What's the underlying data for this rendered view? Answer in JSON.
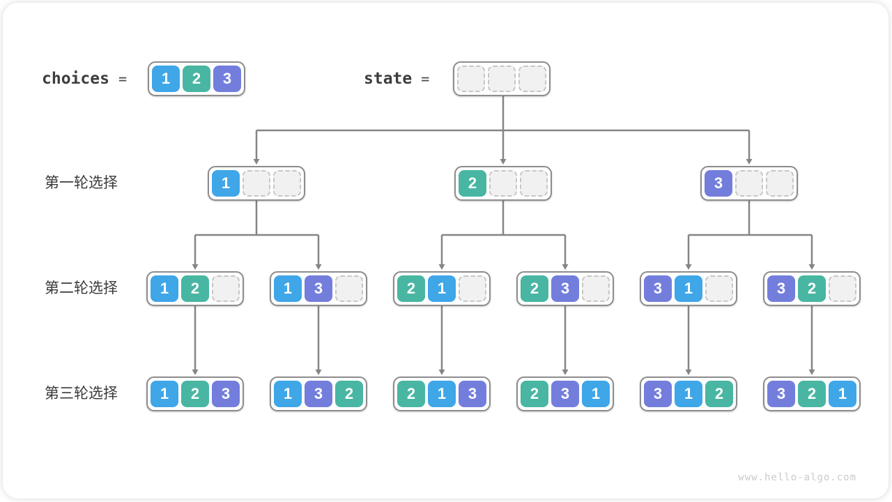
{
  "page": {
    "watermark": "www.hello-algo.com"
  },
  "colors": {
    "1": "#3FA6E8",
    "2": "#48B6A2",
    "3": "#737EDC",
    "empty_fill": "#F1F1F1",
    "empty_border": "#C6C6C6",
    "arrow": "#858585",
    "node_border": "#8D8D8D"
  },
  "header": {
    "choices_label": "choices",
    "equals": "=",
    "choices_values": [
      1,
      2,
      3
    ],
    "state_label": "state",
    "state_values": [
      0,
      0,
      0
    ]
  },
  "rows": [
    {
      "label": "第一轮选择",
      "nodes": [
        [
          1,
          0,
          0
        ],
        [
          2,
          0,
          0
        ],
        [
          3,
          0,
          0
        ]
      ]
    },
    {
      "label": "第二轮选择",
      "nodes": [
        [
          1,
          2,
          0
        ],
        [
          1,
          3,
          0
        ],
        [
          2,
          1,
          0
        ],
        [
          2,
          3,
          0
        ],
        [
          3,
          1,
          0
        ],
        [
          3,
          2,
          0
        ]
      ]
    },
    {
      "label": "第三轮选择",
      "nodes": [
        [
          1,
          2,
          3
        ],
        [
          1,
          3,
          2
        ],
        [
          2,
          1,
          3
        ],
        [
          2,
          3,
          1
        ],
        [
          3,
          1,
          2
        ],
        [
          3,
          2,
          1
        ]
      ]
    }
  ]
}
